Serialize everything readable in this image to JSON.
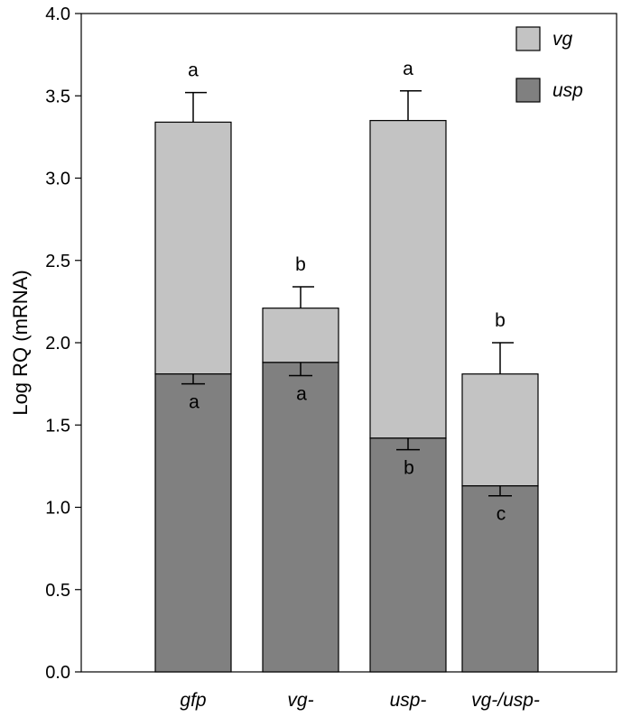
{
  "chart_data": {
    "type": "bar",
    "stacked": true,
    "ylabel": "Log RQ (mRNA)",
    "ylim": [
      0,
      4.0
    ],
    "yticks": [
      "0.0",
      "0.5",
      "1.0",
      "1.5",
      "2.0",
      "2.5",
      "3.0",
      "3.5",
      "4.0"
    ],
    "categories": [
      "gfp",
      "vg-",
      "usp-",
      "vg-/usp-"
    ],
    "grid": false,
    "legend_position": "top-right",
    "series": [
      {
        "name": "usp",
        "color": "#808080",
        "values": [
          1.81,
          1.88,
          1.42,
          1.13
        ],
        "error": [
          0.06,
          0.08,
          0.07,
          0.06
        ],
        "error_direction": "down",
        "significance": [
          "a",
          "a",
          "b",
          "c"
        ]
      },
      {
        "name": "vg",
        "color": "#c3c3c3",
        "totals": [
          3.34,
          2.21,
          3.35,
          1.81
        ],
        "values": [
          1.53,
          0.33,
          1.93,
          0.68
        ],
        "error": [
          0.18,
          0.13,
          0.18,
          0.19
        ],
        "error_direction": "up",
        "significance": [
          "a",
          "b",
          "a",
          "b"
        ]
      }
    ]
  }
}
